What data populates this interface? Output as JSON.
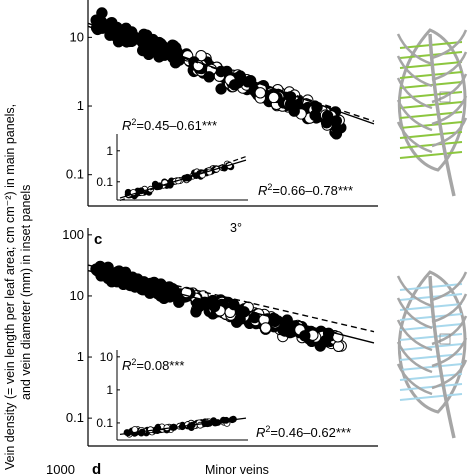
{
  "figure": {
    "ylabel_line1": "Vein density (= vein length per leaf area; cm cm⁻²) in main panels,",
    "ylabel_line2": "and vein diameter (mm) in inset panels",
    "panel_c_letter": "c",
    "panel_d_letter": "d",
    "top_title": "3°",
    "bottom_title": "Minor veins",
    "bottom_tick": "1000"
  },
  "chart_data": [
    {
      "id": "top-main",
      "type": "scatter",
      "yscale": "log",
      "ylim": [
        0.035,
        35
      ],
      "yticks": [
        "0.1",
        "1",
        "10"
      ],
      "annotation_main": "R²=0.66–0.78***",
      "annotation_inset": "R²=0.45–0.61***",
      "inset_yticks": [
        "0.1",
        "1"
      ],
      "fit_solid": [
        [
          0.0,
          16.0
        ],
        [
          1.0,
          0.55
        ]
      ],
      "fit_dashed": [
        [
          0.0,
          14.5
        ],
        [
          1.0,
          0.6
        ]
      ],
      "inset_fit_solid": [
        [
          0.0,
          0.03
        ],
        [
          1.0,
          0.5
        ]
      ],
      "inset_fit_dashed": [
        [
          0.0,
          0.025
        ],
        [
          1.0,
          0.65
        ]
      ],
      "leaf_vein_color": "#8cc63f"
    },
    {
      "id": "bottom-main",
      "type": "scatter",
      "yscale": "log",
      "ylim": [
        0.035,
        120
      ],
      "yticks": [
        "0.1",
        "1",
        "10",
        "100"
      ],
      "annotation_main": "R²=0.46–0.62***",
      "annotation_inset": "R²=0.08***",
      "inset_yticks": [
        "0.1",
        "1",
        "10"
      ],
      "fit_solid": [
        [
          0.0,
          26.0
        ],
        [
          1.0,
          1.7
        ]
      ],
      "fit_dashed": [
        [
          0.0,
          32.0
        ],
        [
          1.0,
          2.6
        ]
      ],
      "inset_fit_solid": [
        [
          0.0,
          0.045
        ],
        [
          1.0,
          0.14
        ]
      ],
      "leaf_vein_color": "#a8d8ec"
    }
  ]
}
